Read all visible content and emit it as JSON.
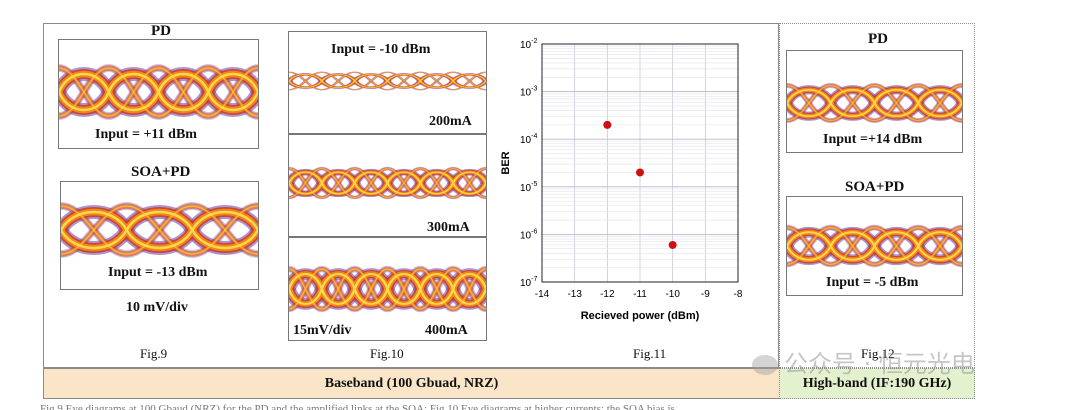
{
  "fig9": {
    "title_pd": "PD",
    "label_pd_input": "Input = +11 dBm",
    "title_soa": "SOA+PD",
    "label_soa_input": "Input = -13 dBm",
    "scale": "10 mV/div",
    "caption": "Fig.9"
  },
  "fig10": {
    "label_input": "Input = -10 dBm",
    "current_1": "200mA",
    "current_2": "300mA",
    "current_3": "400mA",
    "scale": "15mV/div",
    "caption": "Fig.10"
  },
  "fig11": {
    "caption": "Fig.11",
    "chart_data": {
      "type": "scatter",
      "title": "",
      "xlabel": "Recieved power (dBm)",
      "ylabel": "BER",
      "xlim": [
        -14,
        -8
      ],
      "ylim_log10": [
        -7,
        -2
      ],
      "x_ticks": [
        "-14",
        "-13",
        "-12",
        "-11",
        "-10",
        "-9",
        "-8"
      ],
      "y_tick_exponents": [
        "-2",
        "-3",
        "-4",
        "-5",
        "-6",
        "-7"
      ],
      "y_scale": "log",
      "grid": true,
      "marker_color": "#d01010",
      "series": [
        {
          "x": [
            -12,
            -11,
            -10
          ],
          "y": [
            0.0002,
            2e-05,
            6e-07
          ]
        }
      ]
    }
  },
  "fig12": {
    "title_pd": "PD",
    "label_pd_input": "Input =+14 dBm",
    "title_soa": "SOA+PD",
    "label_soa_input": "Input = -5 dBm",
    "caption": "Fig.12"
  },
  "bands": {
    "baseband": "Baseband (100 Gbuad, NRZ)",
    "highband": "High-band (IF:190 GHz)"
  },
  "watermark": "公众号 · 恒元光电",
  "bottom_caption": "Fig.9 Eye diagrams at 100 Gbaud (NRZ) for the PD and the amplified links at the SOA; Fig.10 Eye diagrams at higher currents; the SOA bias is..."
}
